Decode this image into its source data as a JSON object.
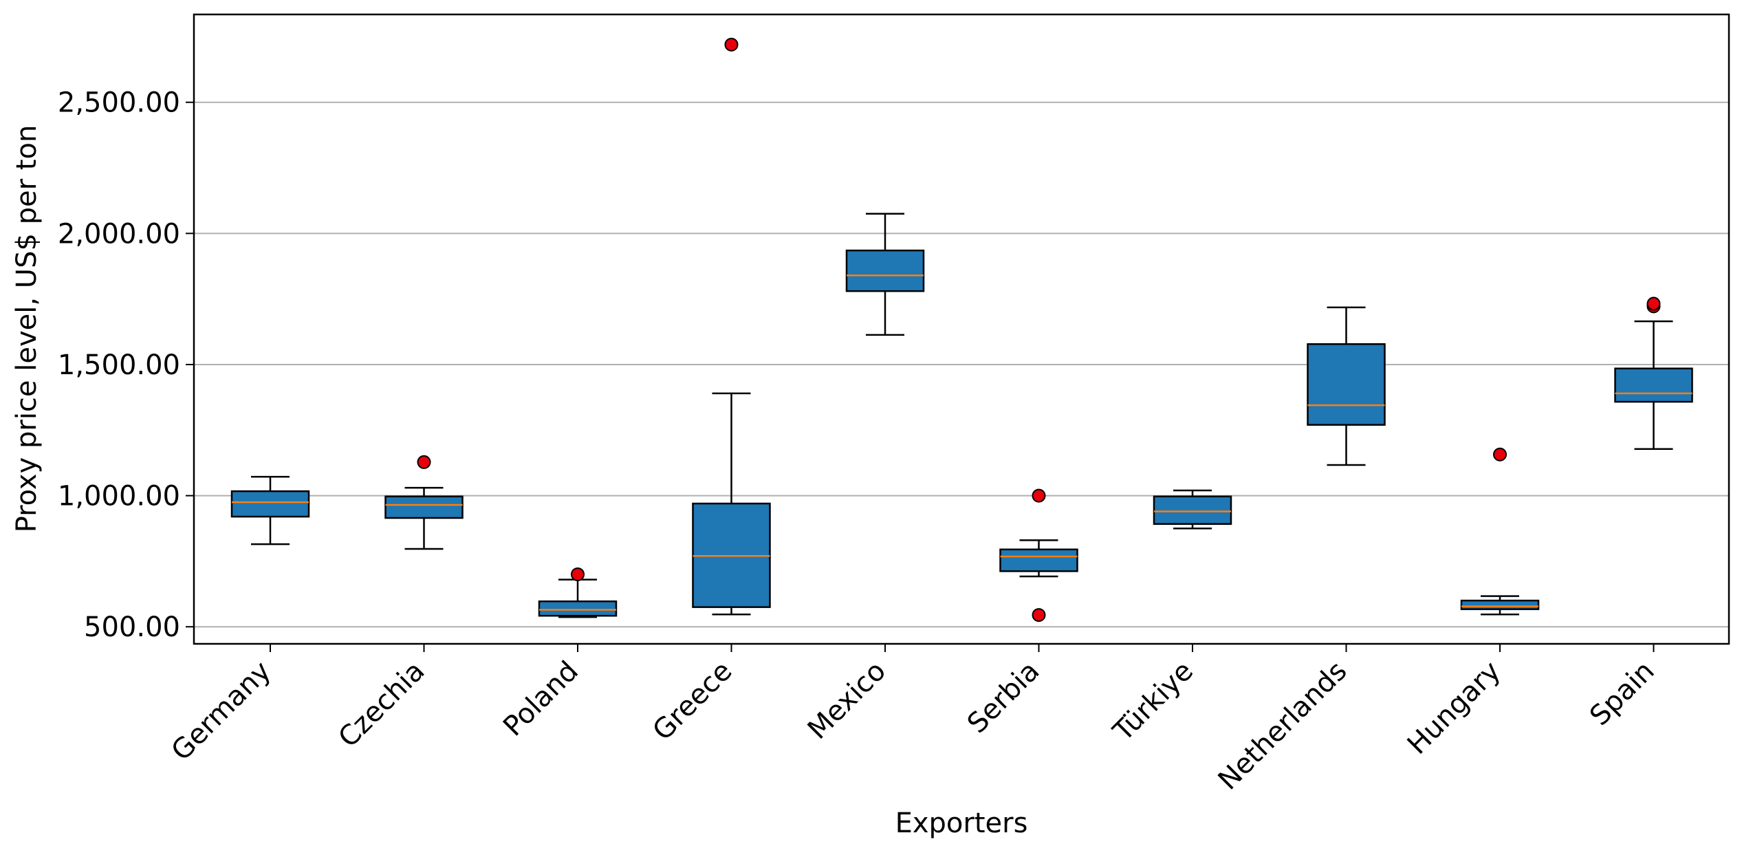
{
  "chart_data": {
    "type": "box",
    "title": "",
    "xlabel": "Exporters",
    "ylabel": "Proxy price level, US$ per ton",
    "ylim": [
      435,
      2835
    ],
    "yticks": [
      500,
      1000,
      1500,
      2000,
      2500
    ],
    "ytick_labels": [
      "500.00",
      "1,000.00",
      "1,500.00",
      "2,000.00",
      "2,500.00"
    ],
    "grid": "horizontal",
    "categories": [
      "Germany",
      "Czechia",
      "Poland",
      "Greece",
      "Mexico",
      "Serbia",
      "Türkiye",
      "Netherlands",
      "Hungary",
      "Spain"
    ],
    "boxes": [
      {
        "min": 815,
        "q1": 920,
        "median": 975,
        "q3": 1017,
        "max": 1072,
        "outliers": []
      },
      {
        "min": 797,
        "q1": 915,
        "median": 965,
        "q3": 997,
        "max": 1030,
        "outliers": [
          1128
        ]
      },
      {
        "min": 537,
        "q1": 542,
        "median": 565,
        "q3": 597,
        "max": 680,
        "outliers": [
          700
        ]
      },
      {
        "min": 547,
        "q1": 575,
        "median": 770,
        "q3": 970,
        "max": 1390,
        "outliers": [
          2720
        ]
      },
      {
        "min": 1613,
        "q1": 1780,
        "median": 1840,
        "q3": 1935,
        "max": 2075,
        "outliers": []
      },
      {
        "min": 692,
        "q1": 712,
        "median": 768,
        "q3": 795,
        "max": 830,
        "outliers": [
          1000,
          545
        ]
      },
      {
        "min": 875,
        "q1": 892,
        "median": 940,
        "q3": 997,
        "max": 1020,
        "outliers": []
      },
      {
        "min": 1117,
        "q1": 1270,
        "median": 1345,
        "q3": 1578,
        "max": 1718,
        "outliers": []
      },
      {
        "min": 547,
        "q1": 567,
        "median": 578,
        "q3": 600,
        "max": 617,
        "outliers": [
          1157
        ]
      },
      {
        "min": 1178,
        "q1": 1358,
        "median": 1390,
        "q3": 1485,
        "max": 1665,
        "outliers": [
          1722,
          1732
        ]
      }
    ],
    "colors": {
      "box_fill": "#1f77b4",
      "median": "#ff7f0e",
      "outlier_fill": "#e8000b",
      "grid": "#b0b0b0",
      "line": "#000000"
    }
  }
}
